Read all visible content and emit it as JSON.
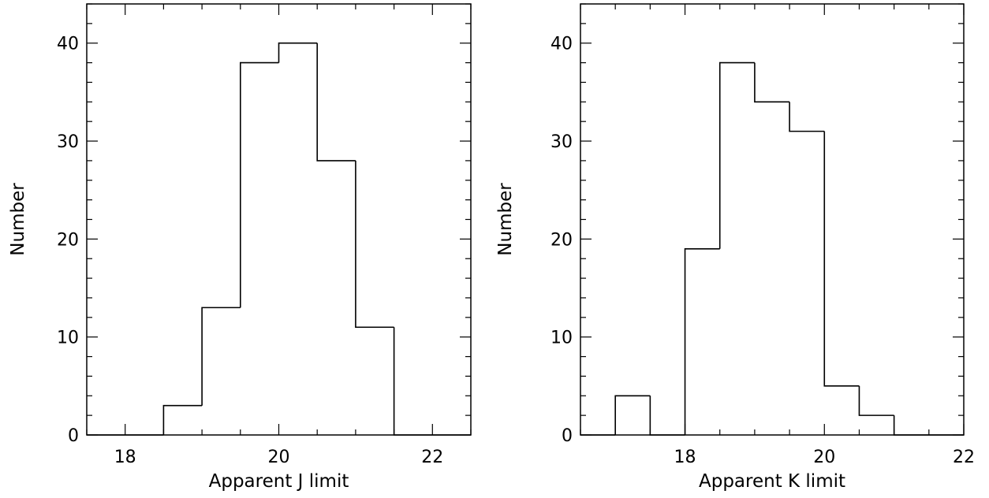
{
  "chart_data": [
    {
      "type": "histogram",
      "title": "",
      "xlabel": "Apparent J limit",
      "ylabel": "Number",
      "xlim": [
        17.5,
        22.5
      ],
      "ylim": [
        0,
        44
      ],
      "xticks": [
        18,
        20,
        22
      ],
      "xtick_labels": [
        "18",
        "20",
        "22"
      ],
      "yticks": [
        0,
        10,
        20,
        30,
        40
      ],
      "ytick_labels": [
        "0",
        "10",
        "20",
        "30",
        "40"
      ],
      "bin_edges": [
        17.5,
        18.0,
        18.5,
        19.0,
        19.5,
        20.0,
        20.5,
        21.0,
        21.5,
        22.0,
        22.5
      ],
      "counts": [
        0,
        0,
        3,
        13,
        38,
        40,
        28,
        11,
        0,
        0
      ],
      "grid": false,
      "legend": "none"
    },
    {
      "type": "histogram",
      "title": "",
      "xlabel": "Apparent K limit",
      "ylabel": "Number",
      "xlim": [
        16.5,
        22.0
      ],
      "ylim": [
        0,
        44
      ],
      "xticks": [
        18,
        20,
        22
      ],
      "xtick_labels": [
        "18",
        "20",
        "22"
      ],
      "yticks": [
        0,
        10,
        20,
        30,
        40
      ],
      "ytick_labels": [
        "0",
        "10",
        "20",
        "30",
        "40"
      ],
      "bin_edges": [
        16.5,
        17.0,
        17.5,
        18.0,
        18.5,
        19.0,
        19.5,
        20.0,
        20.5,
        21.0,
        21.5,
        22.0
      ],
      "counts": [
        0,
        4,
        0,
        19,
        38,
        34,
        31,
        5,
        2,
        0,
        0
      ],
      "grid": false,
      "legend": "none"
    }
  ]
}
